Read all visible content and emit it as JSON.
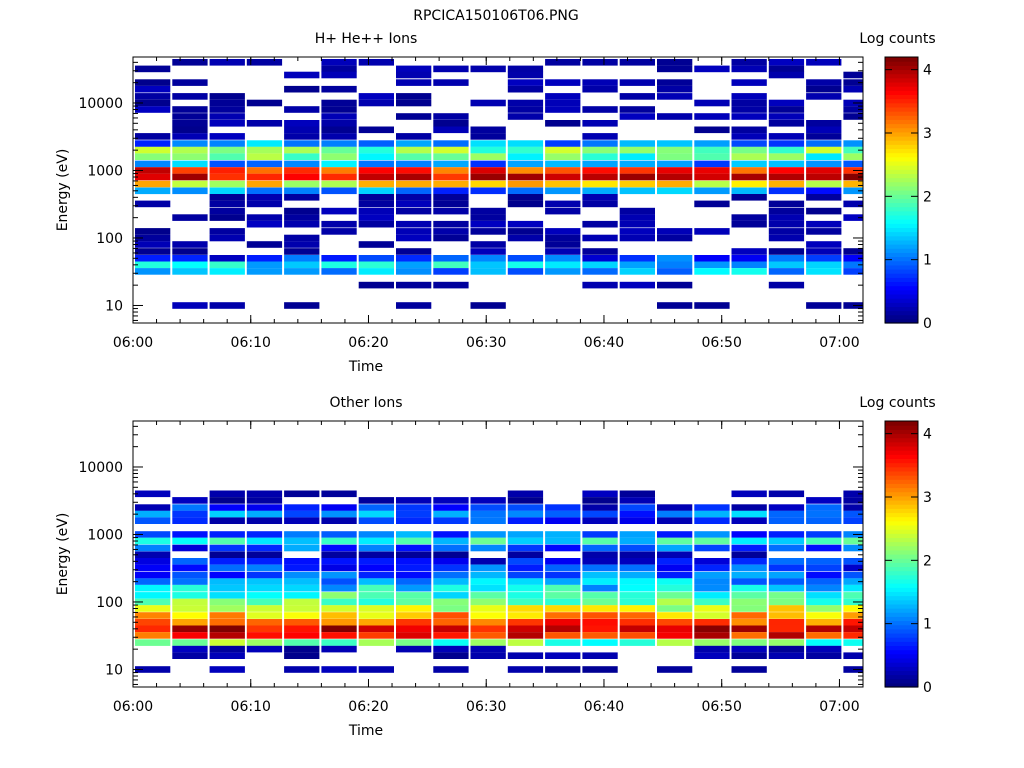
{
  "figure_title": "RPCICA150106T06.PNG",
  "chart_data": [
    {
      "type": "heatmap",
      "title": "H+ He++ Ions",
      "xlabel": "Time",
      "ylabel": "Energy (eV)",
      "colorbar_label": "Log counts",
      "xlim": [
        "06:00",
        "07:02"
      ],
      "x_ticks": [
        "06:00",
        "06:10",
        "06:20",
        "06:30",
        "06:40",
        "06:50",
        "07:00"
      ],
      "y_scale": "log",
      "ylim": [
        5.5,
        48000
      ],
      "y_ticks": [
        "10",
        "100",
        "1000",
        "10000"
      ],
      "color_range": [
        0,
        4.2
      ],
      "colorbar_ticks": [
        "0",
        "1",
        "2",
        "3",
        "4"
      ],
      "time_bins": [
        "06:01:40",
        "06:04:50",
        "06:08:00",
        "06:11:10",
        "06:14:20",
        "06:17:30",
        "06:20:40",
        "06:23:50",
        "06:27:00",
        "06:30:10",
        "06:33:20",
        "06:36:30",
        "06:39:40",
        "06:42:50",
        "06:46:00",
        "06:49:10",
        "06:52:20",
        "06:55:30",
        "06:58:40",
        "07:01:50"
      ],
      "bands": [
        {
          "energy": 40000,
          "level": 0.25
        },
        {
          "energy": 32000,
          "level": 0.3
        },
        {
          "energy": 26000,
          "level": 0.3
        },
        {
          "energy": 20000,
          "level": 0.3
        },
        {
          "energy": 16000,
          "level": 0.35
        },
        {
          "energy": 12500,
          "level": 0.3
        },
        {
          "energy": 10000,
          "level": 0.3
        },
        {
          "energy": 8000,
          "level": 0.35
        },
        {
          "energy": 6300,
          "level": 0.35
        },
        {
          "energy": 5000,
          "level": 0.4
        },
        {
          "energy": 4000,
          "level": 0.45
        },
        {
          "energy": 3200,
          "level": 0.5
        },
        {
          "energy": 2500,
          "level": 1.1
        },
        {
          "energy": 2000,
          "level": 2.1
        },
        {
          "energy": 1600,
          "level": 1.9
        },
        {
          "energy": 1250,
          "level": 1.1
        },
        {
          "energy": 1000,
          "level": 3.5
        },
        {
          "energy": 800,
          "level": 3.8
        },
        {
          "energy": 630,
          "level": 2.6
        },
        {
          "energy": 500,
          "level": 1.0
        },
        {
          "energy": 400,
          "level": 0.3
        },
        {
          "energy": 320,
          "level": 0.25
        },
        {
          "energy": 250,
          "level": 0.2
        },
        {
          "energy": 200,
          "level": 0.2
        },
        {
          "energy": 160,
          "level": 0.2
        },
        {
          "energy": 125,
          "level": 0.25
        },
        {
          "energy": 100,
          "level": 0.3
        },
        {
          "energy": 80,
          "level": 0.45
        },
        {
          "energy": 63,
          "level": 0.5
        },
        {
          "energy": 50,
          "level": 0.7
        },
        {
          "energy": 40,
          "level": 1.4
        },
        {
          "energy": 32,
          "level": 1.2
        },
        {
          "energy": 20,
          "level": 0.1
        },
        {
          "energy": 10,
          "level": 0.05
        }
      ]
    },
    {
      "type": "heatmap",
      "title": "Other Ions",
      "xlabel": "Time",
      "ylabel": "Energy (eV)",
      "colorbar_label": "Log counts",
      "xlim": [
        "06:00",
        "07:02"
      ],
      "x_ticks": [
        "06:00",
        "06:10",
        "06:20",
        "06:30",
        "06:40",
        "06:50",
        "07:00"
      ],
      "y_scale": "log",
      "ylim": [
        5.5,
        48000
      ],
      "y_ticks": [
        "10",
        "100",
        "1000",
        "10000"
      ],
      "color_range": [
        0,
        4.2
      ],
      "colorbar_ticks": [
        "0",
        "1",
        "2",
        "3",
        "4"
      ],
      "time_bins": [
        "06:01:40",
        "06:04:50",
        "06:08:00",
        "06:11:10",
        "06:14:20",
        "06:17:30",
        "06:20:40",
        "06:23:50",
        "06:27:00",
        "06:30:10",
        "06:33:20",
        "06:36:30",
        "06:39:40",
        "06:42:50",
        "06:46:00",
        "06:49:10",
        "06:52:20",
        "06:55:30",
        "06:58:40",
        "07:01:50"
      ],
      "bands": [
        {
          "energy": 4000,
          "level": 0.3
        },
        {
          "energy": 3200,
          "level": 0.4
        },
        {
          "energy": 2500,
          "level": 0.6
        },
        {
          "energy": 2000,
          "level": 1.0
        },
        {
          "energy": 1600,
          "level": 0.6
        },
        {
          "energy": 1000,
          "level": 0.9
        },
        {
          "energy": 800,
          "level": 1.6
        },
        {
          "energy": 630,
          "level": 0.8
        },
        {
          "energy": 500,
          "level": 0.4
        },
        {
          "energy": 400,
          "level": 0.6
        },
        {
          "energy": 320,
          "level": 0.7
        },
        {
          "energy": 250,
          "level": 0.9
        },
        {
          "energy": 200,
          "level": 1.2
        },
        {
          "energy": 160,
          "level": 1.5
        },
        {
          "energy": 125,
          "level": 1.8
        },
        {
          "energy": 100,
          "level": 2.1
        },
        {
          "energy": 80,
          "level": 2.5
        },
        {
          "energy": 63,
          "level": 2.9
        },
        {
          "energy": 50,
          "level": 3.4
        },
        {
          "energy": 40,
          "level": 3.9
        },
        {
          "energy": 32,
          "level": 3.6
        },
        {
          "energy": 25,
          "level": 2.0
        },
        {
          "energy": 20,
          "level": 0.15
        },
        {
          "energy": 16,
          "level": 0.05
        },
        {
          "energy": 10,
          "level": 0.05
        }
      ]
    }
  ]
}
